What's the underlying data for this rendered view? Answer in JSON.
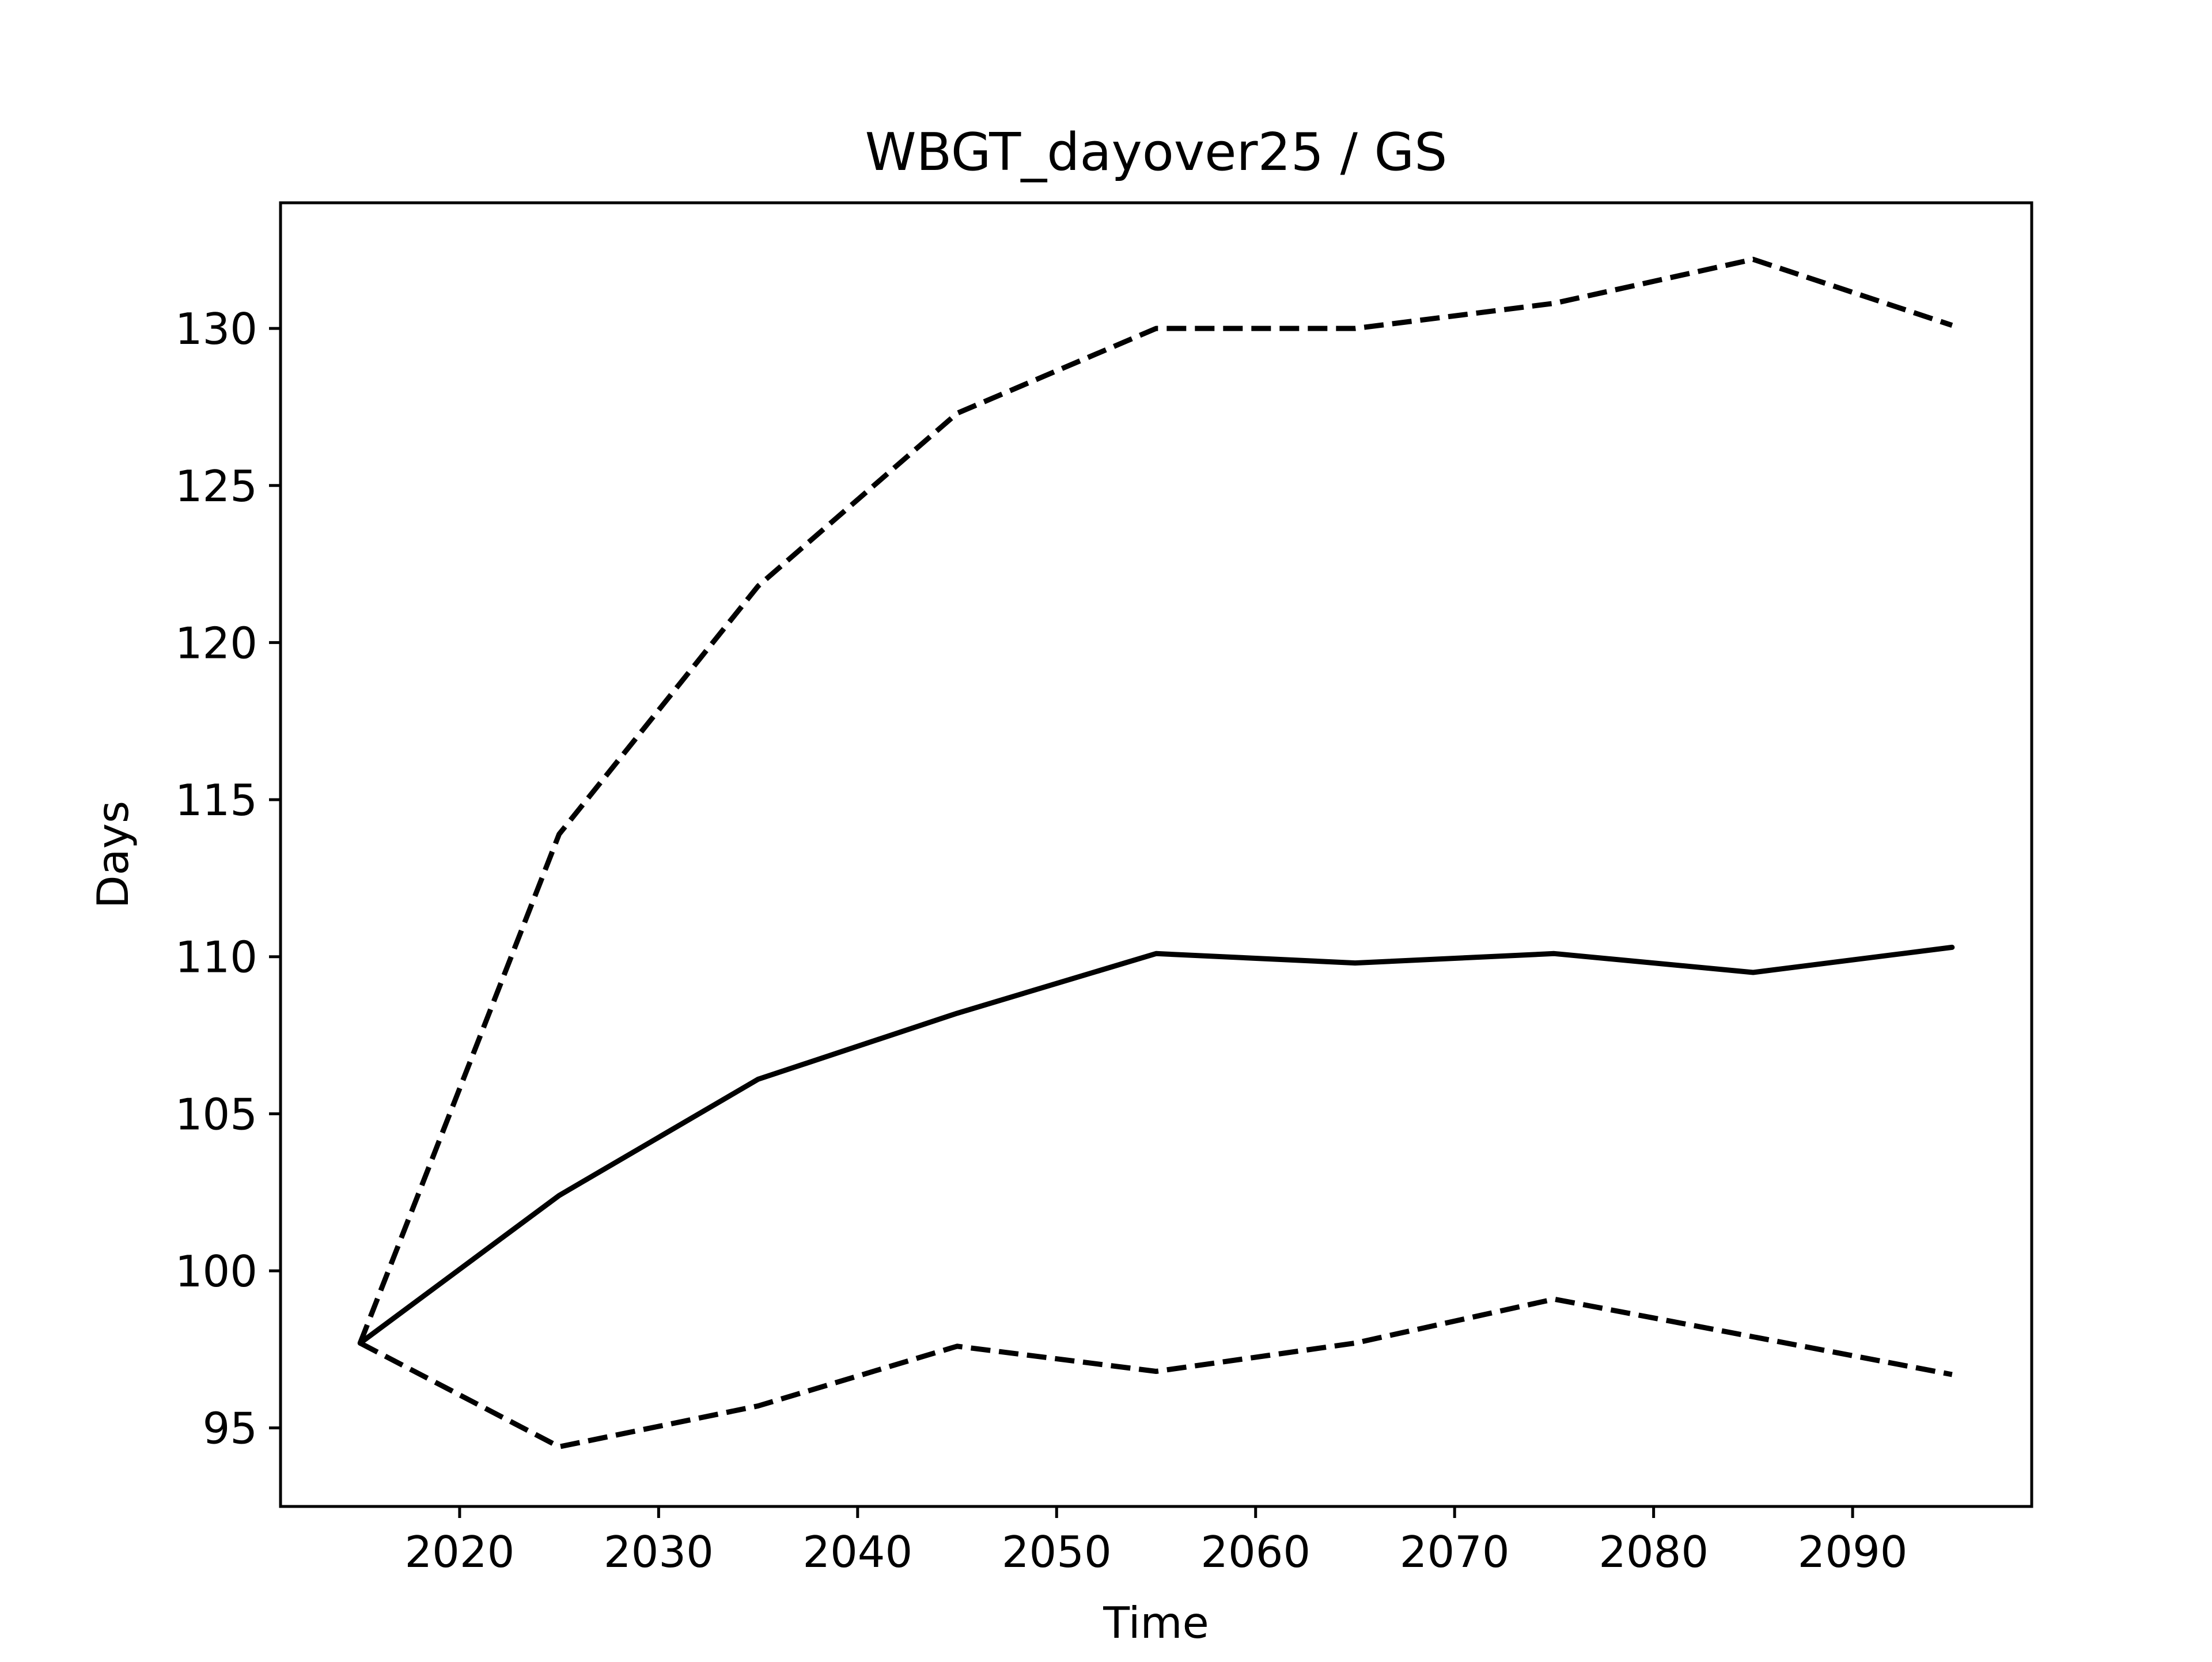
{
  "chart_data": {
    "type": "line",
    "title": "WBGT_dayover25 / GS",
    "xlabel": "Time",
    "ylabel": "Days",
    "xlim": [
      2011,
      2099
    ],
    "ylim": [
      92.5,
      134
    ],
    "xticks": [
      2020,
      2030,
      2040,
      2050,
      2060,
      2070,
      2080,
      2090
    ],
    "yticks": [
      95,
      100,
      105,
      110,
      115,
      120,
      125,
      130
    ],
    "grid": false,
    "legend": null,
    "x": [
      2015,
      2025,
      2035,
      2045,
      2055,
      2065,
      2075,
      2085,
      2095
    ],
    "series": [
      {
        "style": "solid",
        "color": "#000000",
        "values": [
          97.7,
          102.4,
          106.1,
          108.2,
          110.1,
          109.8,
          110.1,
          109.5,
          110.3
        ]
      },
      {
        "style": "dashed",
        "color": "#000000",
        "values": [
          97.7,
          113.9,
          121.8,
          127.3,
          130.0,
          130.0,
          130.8,
          132.2,
          130.1
        ]
      },
      {
        "style": "dashed",
        "color": "#000000",
        "values": [
          97.7,
          94.4,
          95.7,
          97.6,
          96.8,
          97.7,
          99.1,
          97.9,
          96.7
        ]
      }
    ]
  }
}
